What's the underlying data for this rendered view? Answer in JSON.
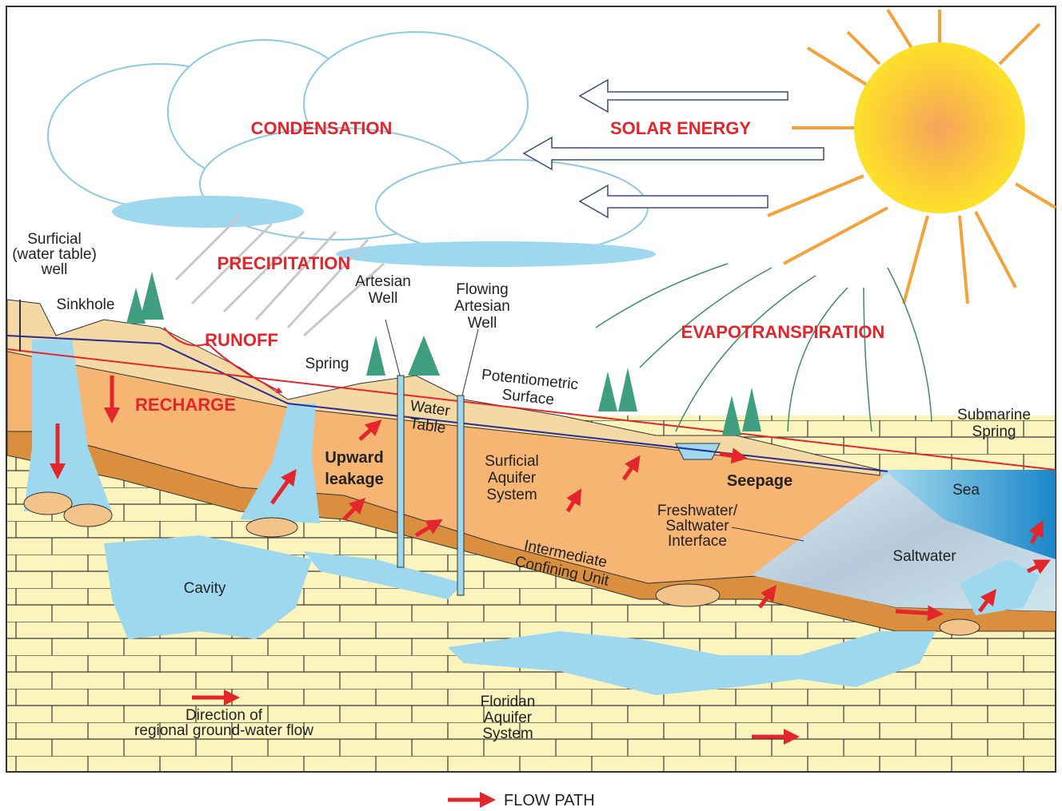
{
  "processes": [
    "CONDENSATION",
    "SOLAR ENERGY",
    "PRECIPITATION",
    "RUNOFF",
    "EVAPOTRANSPIRATION",
    "RECHARGE"
  ],
  "bold_labels": [
    [
      "Upward",
      "leakage"
    ],
    [
      "Seepage"
    ]
  ],
  "labels": [
    [
      "Surficial",
      "(water table)",
      "well"
    ],
    [
      "Sinkhole"
    ],
    [
      "Artesian",
      "Well"
    ],
    [
      "Flowing",
      "Artesian",
      "Well"
    ],
    [
      "Spring"
    ],
    [
      "Potentiometric",
      "Surface"
    ],
    [
      "Water",
      "Table"
    ],
    [
      "Surficial",
      "Aquifer",
      "System"
    ],
    [
      "Intermediate",
      "Confining Unit"
    ],
    [
      "Freshwater/",
      "Saltwater",
      "Interface"
    ],
    [
      "Sea"
    ],
    [
      "Saltwater"
    ],
    [
      "Submarine",
      "Spring"
    ],
    [
      "Cavity"
    ],
    [
      "Direction of",
      "regional ground-water flow"
    ],
    [
      "Floridan",
      "Aquifer",
      "System"
    ]
  ],
  "legend": "FLOW PATH"
}
